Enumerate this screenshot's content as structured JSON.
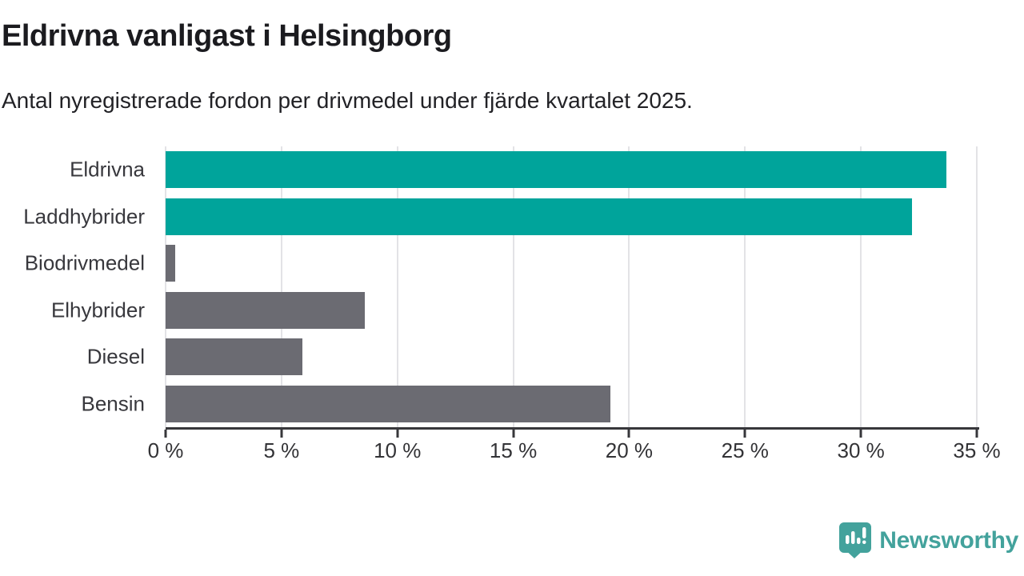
{
  "title": "Eldrivna vanligast i Helsingborg",
  "subtitle": "Antal nyregistrerade fordon per drivmedel under fjärde kvartalet 2025.",
  "colors": {
    "highlight_bar": "#00a49b",
    "default_bar": "#6b6b72",
    "gridline": "#e3e3e6",
    "axis": "#37373b",
    "tick_label": "#333336",
    "category_label": "#38383d",
    "title_text": "#1b1b1f",
    "logo_teal": "#43a29c",
    "logo_glyph": "#ffffff"
  },
  "chart_data": {
    "type": "bar",
    "orientation": "horizontal",
    "title": "Eldrivna vanligast i Helsingborg",
    "subtitle": "Antal nyregistrerade fordon per drivmedel under fjärde kvartalet 2025.",
    "categories": [
      "Eldrivna",
      "Laddhybrider",
      "Biodrivmedel",
      "Elhybrider",
      "Diesel",
      "Bensin"
    ],
    "values": [
      33.7,
      32.2,
      0.4,
      8.6,
      5.9,
      19.2
    ],
    "unit": "%",
    "bar_colors": [
      "#00a49b",
      "#00a49b",
      "#6b6b72",
      "#6b6b72",
      "#6b6b72",
      "#6b6b72"
    ],
    "xlabel": "",
    "ylabel": "",
    "xlim": [
      0,
      35
    ],
    "x_tick_step": 5,
    "x_tick_labels": [
      "0 %",
      "5 %",
      "10 %",
      "15 %",
      "20 %",
      "25 %",
      "30 %",
      "35 %"
    ],
    "grid": true,
    "legend": false
  },
  "footer": {
    "brand": "Newsworthy"
  }
}
